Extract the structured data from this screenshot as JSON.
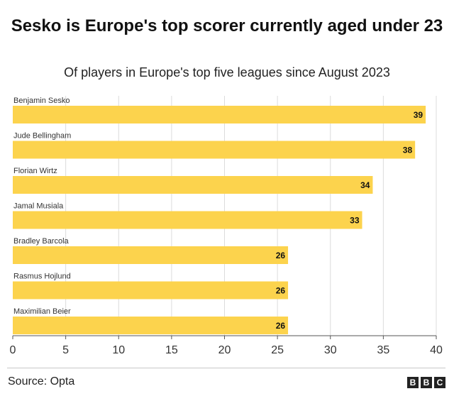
{
  "chart_data": {
    "type": "bar",
    "orientation": "horizontal",
    "title": "Sesko is Europe's top scorer currently aged under 23",
    "subtitle": "Of players in Europe's top five leagues since August 2023",
    "categories": [
      "Benjamin Sesko",
      "Jude Bellingham",
      "Florian Wirtz",
      "Jamal Musiala",
      "Bradley Barcola",
      "Rasmus Hojlund",
      "Maximilian Beier"
    ],
    "values": [
      39,
      38,
      34,
      33,
      26,
      26,
      26
    ],
    "xlim": [
      0,
      40
    ],
    "xticks": [
      0,
      5,
      10,
      15,
      20,
      25,
      30,
      35,
      40
    ],
    "grid": true,
    "bar_color": "#fcd34d"
  },
  "footer": {
    "source": "Source: Opta",
    "logo_letters": [
      "B",
      "B",
      "C"
    ]
  }
}
